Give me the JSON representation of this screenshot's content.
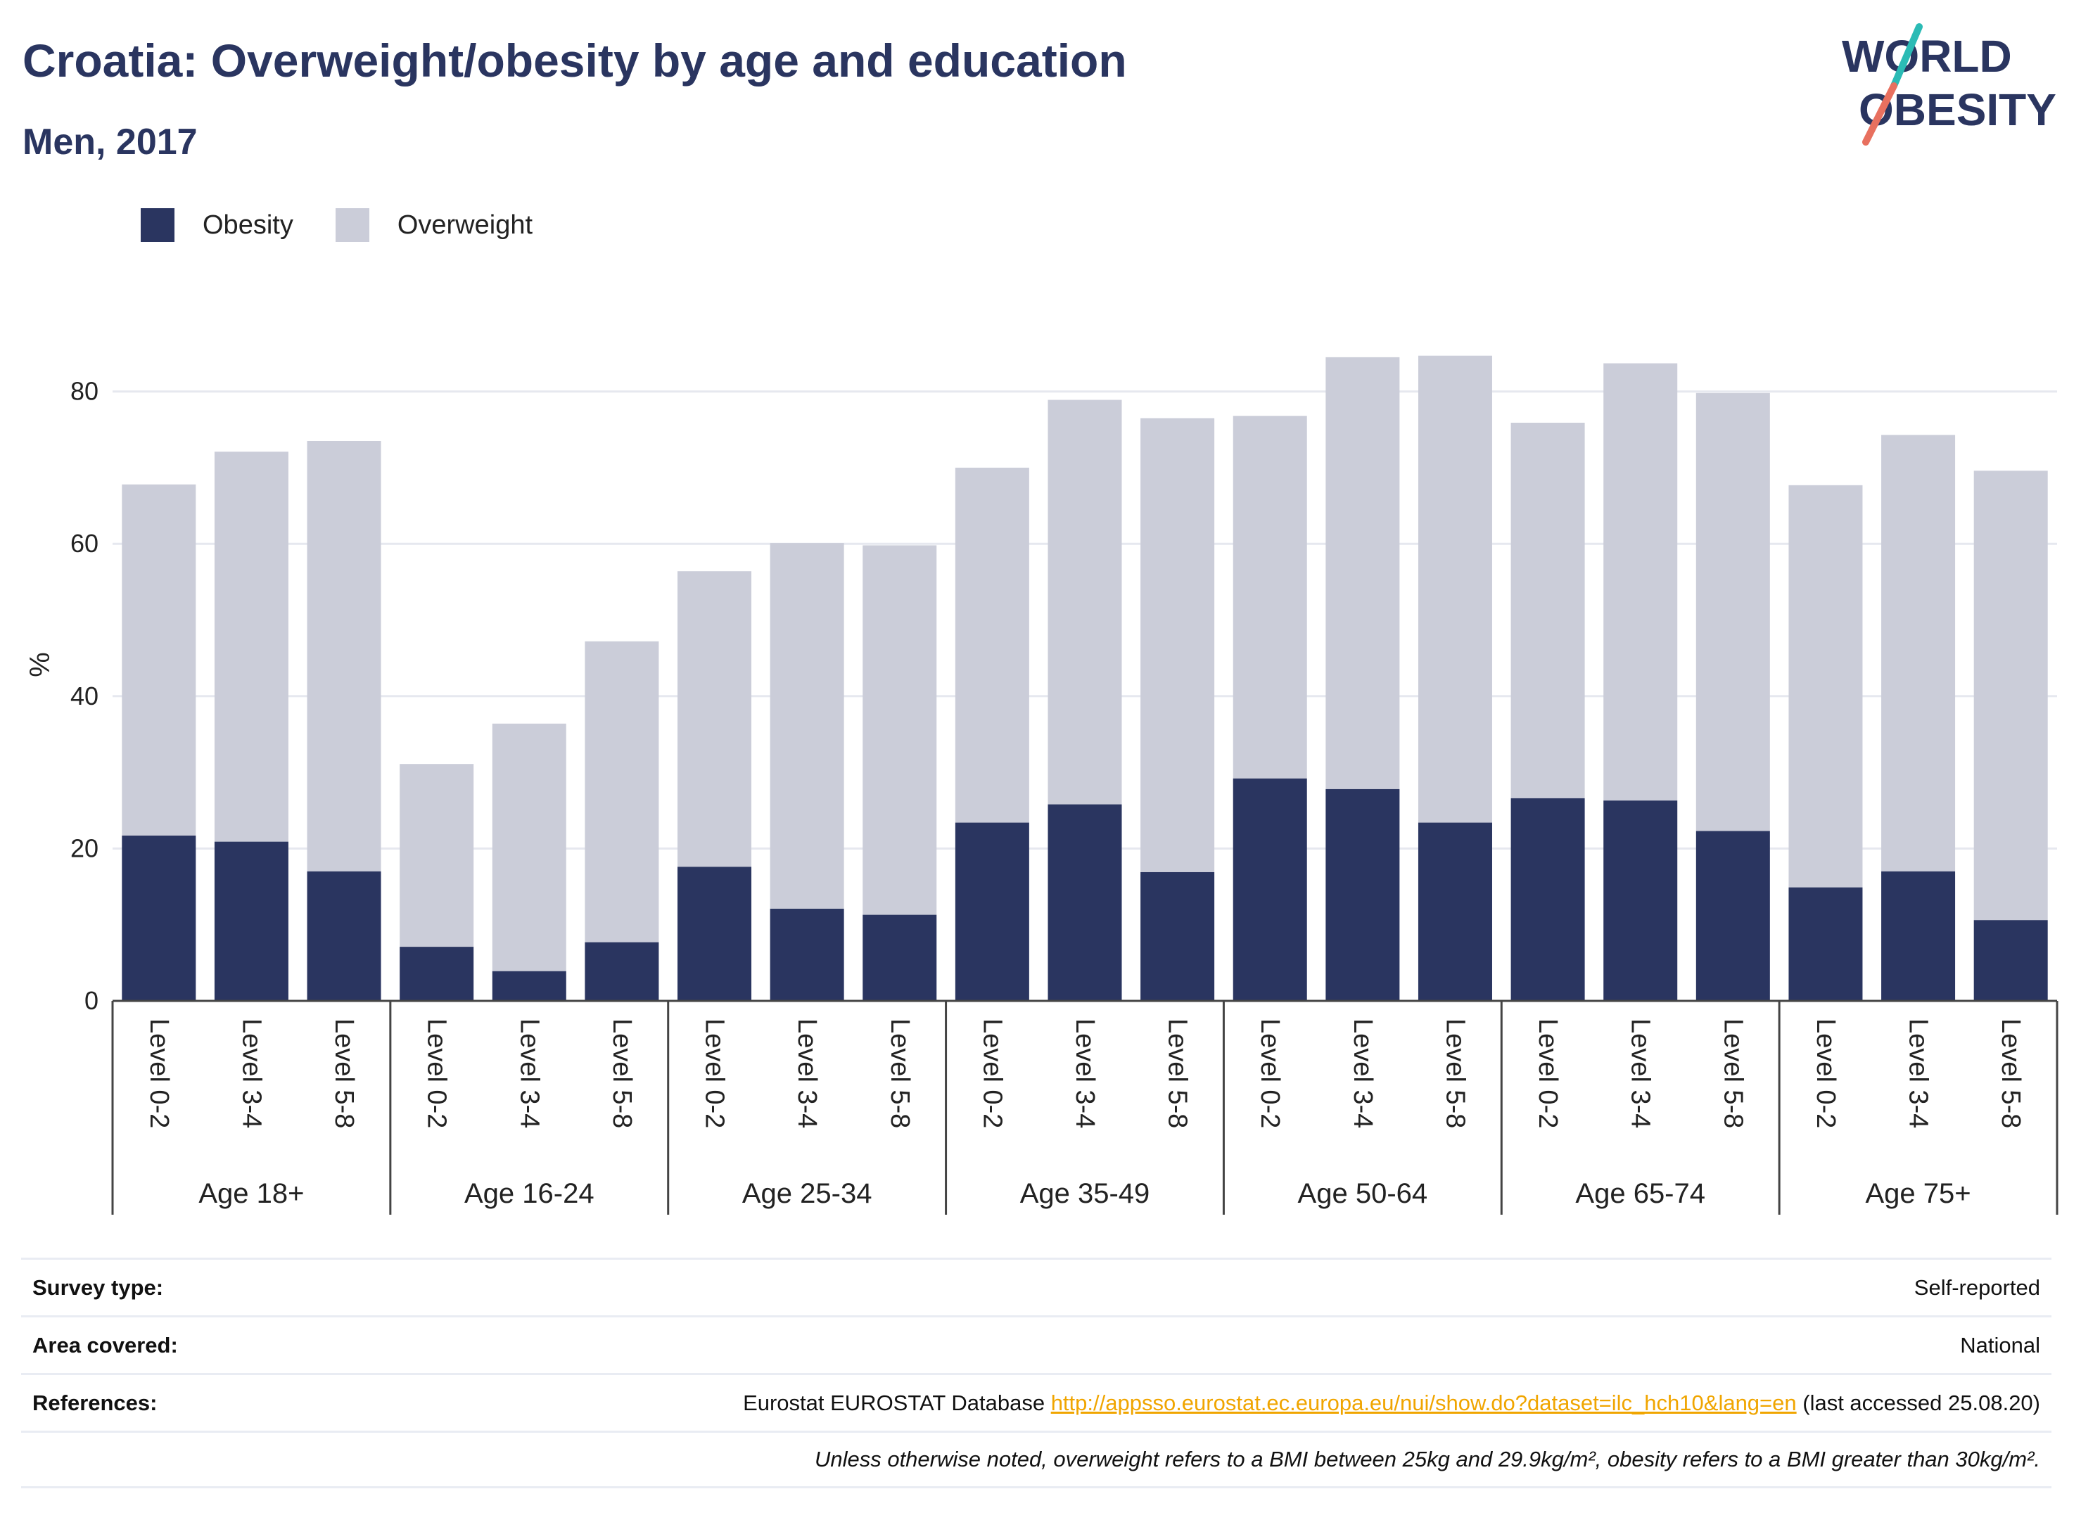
{
  "title": "Croatia: Overweight/obesity by age and education",
  "subtitle": "Men, 2017",
  "logo": {
    "line1": "WORLD",
    "line2": "OBESITY"
  },
  "legend": [
    {
      "label": "Obesity",
      "color": "#2a3560"
    },
    {
      "label": "Overweight",
      "color": "#cbcdd9"
    }
  ],
  "chart_data": {
    "type": "bar",
    "stacked": true,
    "ylabel": "%",
    "ylim": [
      0,
      90
    ],
    "yticks": [
      0,
      20,
      40,
      60,
      80
    ],
    "grid": true,
    "legend_position": "top-left",
    "groups": [
      "Age 18+",
      "Age 16-24",
      "Age 25-34",
      "Age 35-49",
      "Age 50-64",
      "Age 65-74",
      "Age 75+"
    ],
    "levels": [
      "Level 0-2",
      "Level 3-4",
      "Level 5-8"
    ],
    "series": [
      {
        "name": "Obesity",
        "color": "#2a3560",
        "values": [
          21.7,
          20.9,
          17.0,
          7.1,
          3.9,
          7.7,
          17.6,
          12.1,
          11.3,
          23.4,
          25.8,
          16.9,
          29.2,
          27.8,
          23.4,
          26.6,
          26.3,
          22.3,
          14.9,
          17.0,
          10.6
        ]
      },
      {
        "name": "Overweight",
        "color": "#cbcdd9",
        "values": [
          46.1,
          51.2,
          56.5,
          24.0,
          32.5,
          39.5,
          38.8,
          48.0,
          48.5,
          46.6,
          53.1,
          59.6,
          47.6,
          56.7,
          61.3,
          49.3,
          57.4,
          57.5,
          52.8,
          57.3,
          59.0
        ]
      }
    ]
  },
  "footer": {
    "survey_type_label": "Survey type:",
    "survey_type_value": "Self-reported",
    "area_label": "Area covered:",
    "area_value": "National",
    "references_label": "References:",
    "references_prefix": "Eurostat EUROSTAT Database ",
    "references_link": "http://appsso.eurostat.ec.europa.eu/nui/show.do?dataset=ilc_hch10&lang=en",
    "references_suffix": " (last accessed 25.08.20)",
    "note": "Unless otherwise noted, overweight refers to a BMI between 25kg and 29.9kg/m², obesity refers to a BMI greater than 30kg/m²."
  }
}
